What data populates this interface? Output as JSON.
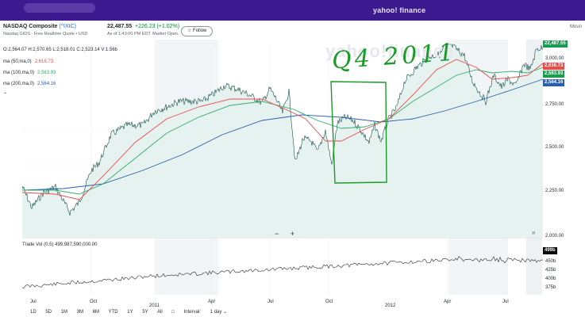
{
  "topbar": {
    "brand": "yahoo! finance"
  },
  "header": {
    "name": "NASDAQ Composite",
    "symbol": "(^IXIC)",
    "source": "Nasdaq GIDS - Free Realtime Quote • USD",
    "price": "22,487.55",
    "change": "+226.23 (+1.02%)",
    "as_of": "As of 1:43:00 PM EDT. Market Open.",
    "follow": "☆ Follow",
    "mount": "Moun"
  },
  "ohlc": "O:2,564.07  H:2,570.65  L:2,518.01  C:2,523.14  V:1.56b",
  "indicators": [
    {
      "label": "ma (50,ma,0)",
      "value": "2,616.73",
      "color": "#e84d4d"
    },
    {
      "label": "ma (100,ma,0)",
      "value": "2,563.93",
      "color": "#2fae69"
    },
    {
      "label": "ma (200,ma,0)",
      "value": "2,564.16",
      "color": "#2a5db0"
    }
  ],
  "watermark": "yahoo!finance",
  "annotation": "Q4 2011",
  "y_axis": [
    "3,000.00",
    "2,750.00",
    "2,500.00",
    "2,250.00",
    "2,000.00"
  ],
  "price_tags": [
    {
      "text": "22,487.55",
      "color": "#1a9b50"
    },
    {
      "text": "2,616.73",
      "color": "#e84d4d"
    },
    {
      "text": "2,563.93",
      "color": "#1a9b50"
    },
    {
      "text": "2,564.16",
      "color": "#2a5db0"
    }
  ],
  "volume": {
    "label": "Trade Vol (0.5)  499,987,590,000.00",
    "axis": [
      "450b",
      "425b",
      "400b",
      "375b"
    ],
    "tag": "499b"
  },
  "x_axis": [
    "Jul",
    "Oct",
    "2011",
    "Apr",
    "Jul",
    "Oct",
    "2012",
    "Apr",
    "Jul"
  ],
  "controls": {
    "zoom": "− +",
    "expand": "»"
  },
  "ranges": [
    "1D",
    "5D",
    "1M",
    "3M",
    "6M",
    "YTD",
    "1Y",
    "5Y",
    "All"
  ],
  "interval_label": "Interval:",
  "interval_value": "1 day ⌄",
  "colors": {
    "brand": "#3d1a8f",
    "up": "#008a3e",
    "ma50": "#e84d4d",
    "ma100": "#2fae69",
    "ma200": "#2a5db0",
    "annotation": "#1a9b28"
  }
}
